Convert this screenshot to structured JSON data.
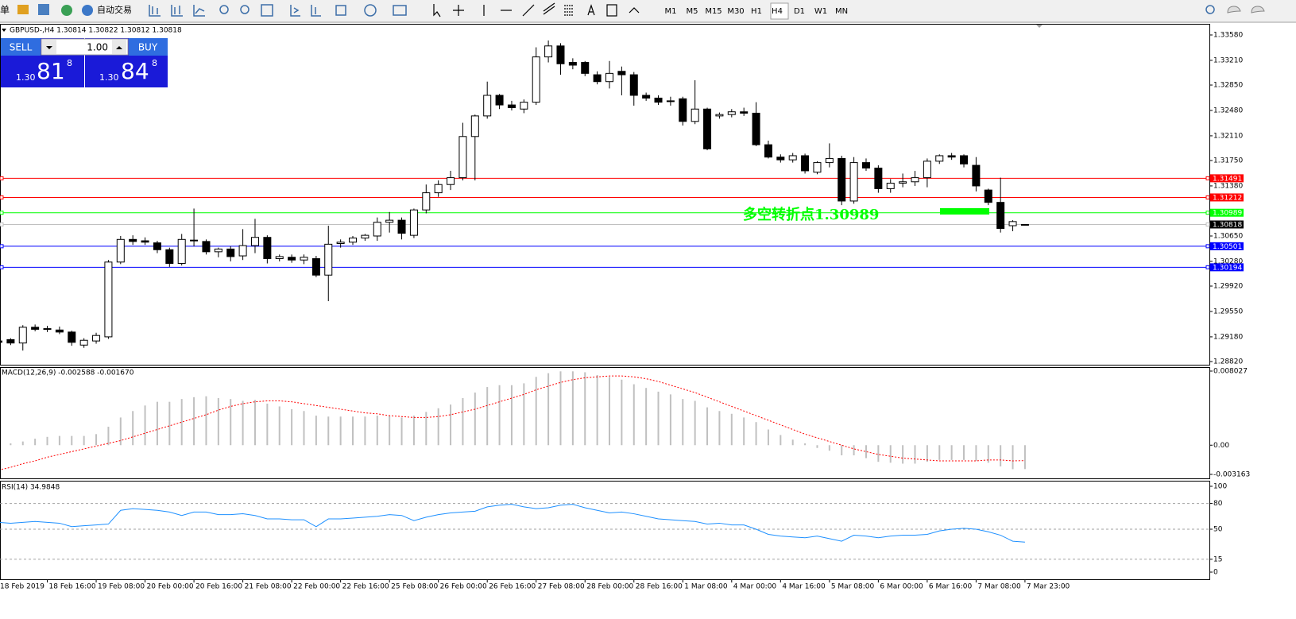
{
  "toolbar": {
    "menu": "单",
    "autotrade": "自动交易",
    "timeframes": [
      "M1",
      "M5",
      "M15",
      "M30",
      "H1",
      "H4",
      "D1",
      "W1",
      "MN"
    ],
    "selected": 5
  },
  "trade_panel": {
    "sell": "SELL",
    "buy": "BUY",
    "lots": "1.00",
    "bid": {
      "big": "1.30",
      "pips": "81",
      "point": "8"
    },
    "ask": {
      "big": "1.30",
      "pips": "84",
      "point": "8"
    }
  },
  "chart_data": [
    {
      "type": "candlestick",
      "title": "GBPUSD-,H4 1.30814 1.30822 1.30812 1.30818",
      "categories": [
        "18 Feb 2019",
        null,
        null,
        null,
        "18 Feb 16:00",
        null,
        null,
        null,
        "19 Feb 08:00",
        null,
        null,
        null,
        "20 Feb 00:00",
        null,
        null,
        null,
        "20 Feb 16:00",
        null,
        null,
        null,
        "21 Feb 08:00",
        null,
        null,
        null,
        "22 Feb 00:00",
        null,
        null,
        null,
        "22 Feb 16:00",
        null,
        null,
        null,
        "25 Feb 08:00",
        null,
        null,
        null,
        "26 Feb 00:00",
        null,
        null,
        null,
        "26 Feb 16:00",
        null,
        null,
        null,
        "27 Feb 08:00",
        null,
        null,
        null,
        "28 Feb 00:00",
        null,
        null,
        null,
        "28 Feb 16:00",
        null,
        null,
        null,
        "1 Mar 08:00",
        null,
        null,
        null,
        "4 Mar 00:00",
        null,
        null,
        null,
        "4 Mar 16:00",
        null,
        null,
        null,
        "5 Mar 08:00",
        null,
        null,
        null,
        "6 Mar 00:00",
        null,
        null,
        null,
        "6 Mar 16:00",
        null,
        null,
        null,
        "7 Mar 08:00",
        null,
        null,
        null,
        "7 Mar 23:00"
      ],
      "open": [
        1.2912,
        1.2914,
        1.2909,
        1.2932,
        1.293,
        1.2928,
        1.2925,
        1.2906,
        1.2912,
        1.2918,
        1.3027,
        1.306,
        1.3058,
        1.3055,
        1.3045,
        1.3025,
        1.3059,
        1.3057,
        1.3042,
        1.3046,
        1.3036,
        1.3051,
        1.3063,
        1.3032,
        1.3034,
        1.303,
        1.3032,
        1.3008,
        1.3054,
        1.3056,
        1.3062,
        1.3065,
        1.3085,
        1.3088,
        1.3066,
        1.3103,
        1.3128,
        1.314,
        1.315,
        1.321,
        1.324,
        1.327,
        1.3256,
        1.325,
        1.326,
        1.3326,
        1.3342,
        1.3318,
        1.3318,
        1.33,
        1.329,
        1.3305,
        1.33,
        1.327,
        1.3266,
        1.3262,
        1.3265,
        1.3232,
        1.325,
        1.324,
        1.3242,
        1.3246,
        1.3244,
        1.3198,
        1.318,
        1.3176,
        1.3182,
        1.3158,
        1.3172,
        1.3178,
        1.3116,
        1.3172,
        1.3164,
        1.3134,
        1.3142,
        1.3144,
        1.315,
        1.3174,
        1.3182,
        1.3182,
        1.3168,
        1.3132,
        1.3114,
        1.308,
        1.30814
      ],
      "high": [
        1.2915,
        1.2916,
        1.2935,
        1.2936,
        1.2934,
        1.2933,
        1.2927,
        1.2916,
        1.2924,
        1.303,
        1.3065,
        1.3066,
        1.3063,
        1.3058,
        1.3048,
        1.3068,
        1.3105,
        1.306,
        1.3048,
        1.305,
        1.3075,
        1.309,
        1.3066,
        1.3038,
        1.3038,
        1.3038,
        1.3036,
        1.308,
        1.306,
        1.3065,
        1.3068,
        1.3092,
        1.31,
        1.3092,
        1.3105,
        1.314,
        1.3146,
        1.316,
        1.323,
        1.3242,
        1.329,
        1.3272,
        1.3262,
        1.3264,
        1.334,
        1.335,
        1.3346,
        1.3324,
        1.332,
        1.3305,
        1.332,
        1.3312,
        1.3304,
        1.3274,
        1.327,
        1.3268,
        1.3268,
        1.3292,
        1.3252,
        1.3245,
        1.325,
        1.3252,
        1.326,
        1.3204,
        1.3184,
        1.3186,
        1.3185,
        1.3174,
        1.32,
        1.3182,
        1.318,
        1.3178,
        1.3168,
        1.3148,
        1.3156,
        1.316,
        1.3178,
        1.3184,
        1.3186,
        1.3184,
        1.318,
        1.3134,
        1.315,
        1.3088,
        1.30822
      ],
      "low": [
        1.2905,
        1.2906,
        1.2898,
        1.2926,
        1.2925,
        1.2922,
        1.2905,
        1.2902,
        1.2908,
        1.2915,
        1.3024,
        1.3052,
        1.3052,
        1.304,
        1.302,
        1.3022,
        1.305,
        1.3038,
        1.3034,
        1.3028,
        1.303,
        1.304,
        1.3025,
        1.3028,
        1.3026,
        1.3024,
        1.3005,
        1.297,
        1.3048,
        1.3052,
        1.3058,
        1.3058,
        1.307,
        1.306,
        1.3062,
        1.3098,
        1.3122,
        1.3132,
        1.3146,
        1.3146,
        1.3236,
        1.325,
        1.3248,
        1.3244,
        1.3256,
        1.3318,
        1.33,
        1.3308,
        1.3298,
        1.3286,
        1.328,
        1.327,
        1.3255,
        1.3262,
        1.3256,
        1.3255,
        1.3226,
        1.3228,
        1.319,
        1.3236,
        1.3238,
        1.324,
        1.3196,
        1.3178,
        1.3172,
        1.3172,
        1.3156,
        1.3155,
        1.3165,
        1.311,
        1.3112,
        1.316,
        1.3128,
        1.3128,
        1.3136,
        1.3138,
        1.3136,
        1.317,
        1.3176,
        1.3165,
        1.313,
        1.311,
        1.307,
        1.3072,
        1.30812
      ],
      "close": [
        1.291,
        1.2909,
        1.2932,
        1.2929,
        1.293,
        1.2925,
        1.291,
        1.2913,
        1.292,
        1.3027,
        1.306,
        1.3057,
        1.3056,
        1.3045,
        1.3025,
        1.306,
        1.3058,
        1.3042,
        1.3046,
        1.3035,
        1.3051,
        1.3063,
        1.3032,
        1.3035,
        1.303,
        1.3034,
        1.3008,
        1.3053,
        1.3056,
        1.3062,
        1.3066,
        1.3085,
        1.3088,
        1.3069,
        1.3103,
        1.3128,
        1.314,
        1.315,
        1.321,
        1.324,
        1.327,
        1.3256,
        1.3252,
        1.326,
        1.3326,
        1.3342,
        1.3316,
        1.3314,
        1.3302,
        1.329,
        1.3302,
        1.33,
        1.327,
        1.3266,
        1.326,
        1.3262,
        1.3232,
        1.325,
        1.3192,
        1.3242,
        1.3246,
        1.3244,
        1.3198,
        1.318,
        1.3176,
        1.3182,
        1.316,
        1.3172,
        1.3178,
        1.3116,
        1.3172,
        1.3164,
        1.3134,
        1.3142,
        1.3144,
        1.315,
        1.3174,
        1.3182,
        1.318,
        1.317,
        1.3138,
        1.3114,
        1.3076,
        1.3086,
        1.30818
      ],
      "up_color": "#ffffff",
      "down_color": "#000000",
      "ylim": [
        1.2877,
        1.3374
      ],
      "yticks": [
        {
          "value": 1.3358,
          "label": "1.33580"
        },
        {
          "value": 1.3321,
          "label": "1.33210"
        },
        {
          "value": 1.3285,
          "label": "1.32850"
        },
        {
          "value": 1.3248,
          "label": "1.32480"
        },
        {
          "value": 1.3211,
          "label": "1.32110"
        },
        {
          "value": 1.3175,
          "label": "1.31750"
        },
        {
          "value": 1.3138,
          "label": "1.31380"
        },
        {
          "value": 1.3065,
          "label": "1.30650"
        },
        {
          "value": 1.3028,
          "label": "1.30280"
        },
        {
          "value": 1.2992,
          "label": "1.29920"
        },
        {
          "value": 1.2955,
          "label": "1.29550"
        },
        {
          "value": 1.2918,
          "label": "1.29180"
        },
        {
          "value": 1.2882,
          "label": "1.28820"
        }
      ],
      "levels": [
        {
          "value": 1.31491,
          "color": "#ff0000",
          "label_color": "#ff0000"
        },
        {
          "value": 1.31212,
          "color": "#ff0000",
          "label_color": "#ff0000"
        },
        {
          "value": 1.30989,
          "color": "#00ff00",
          "label_color": "#00ff00"
        },
        {
          "value": 1.30818,
          "color": "#c0c0c0",
          "label_color": "#000000"
        },
        {
          "value": 1.30501,
          "color": "#0000ff",
          "label_color": "#0000ff"
        },
        {
          "value": 1.30194,
          "color": "#0000ff",
          "label_color": "#0000ff"
        }
      ],
      "annotations": [
        {
          "text": "多空转折点1.30989",
          "color": "#00ff00"
        }
      ]
    },
    {
      "type": "macd",
      "title": "MACD(12,26,9) -0.002588 -0.001670",
      "color": "#c0c0c0",
      "signal_color": "#ff0000",
      "values": [
        0.0001,
        0.0002,
        0.0004,
        0.0007,
        0.0009,
        0.001,
        0.001,
        0.001,
        0.0012,
        0.002,
        0.003,
        0.0037,
        0.0043,
        0.0047,
        0.0047,
        0.005,
        0.0052,
        0.0053,
        0.0051,
        0.005,
        0.0048,
        0.0049,
        0.0045,
        0.0042,
        0.0039,
        0.0037,
        0.0032,
        0.0031,
        0.0031,
        0.0031,
        0.0031,
        0.0032,
        0.0032,
        0.003,
        0.0032,
        0.0036,
        0.004,
        0.0044,
        0.0051,
        0.0057,
        0.0063,
        0.0065,
        0.0065,
        0.0067,
        0.0074,
        0.0078,
        0.008,
        0.008,
        0.0079,
        0.0076,
        0.0074,
        0.0071,
        0.0066,
        0.0062,
        0.0058,
        0.0055,
        0.005,
        0.0048,
        0.0041,
        0.0037,
        0.0034,
        0.003,
        0.0025,
        0.0017,
        0.0011,
        0.0006,
        0.0002,
        -0.0003,
        -0.0006,
        -0.0011,
        -0.0011,
        -0.0014,
        -0.0018,
        -0.0019,
        -0.002,
        -0.002,
        -0.0018,
        -0.0016,
        -0.0016,
        -0.0016,
        -0.0017,
        -0.0019,
        -0.0023,
        -0.0026,
        -0.002588
      ],
      "signal": [
        -0.0027,
        -0.0024,
        -0.002,
        -0.0017,
        -0.0013,
        -0.001,
        -0.0007,
        -0.0004,
        -0.0001,
        0.0002,
        0.0005,
        0.0009,
        0.0013,
        0.0017,
        0.0021,
        0.0025,
        0.0029,
        0.0033,
        0.0038,
        0.0042,
        0.0045,
        0.0047,
        0.0048,
        0.0048,
        0.0047,
        0.0045,
        0.0043,
        0.0041,
        0.0039,
        0.0037,
        0.0035,
        0.0034,
        0.0032,
        0.0031,
        0.003,
        0.003,
        0.0031,
        0.0033,
        0.0036,
        0.0039,
        0.0043,
        0.0047,
        0.0051,
        0.0055,
        0.006,
        0.0064,
        0.0068,
        0.0071,
        0.0073,
        0.0074,
        0.0075,
        0.0075,
        0.0074,
        0.0072,
        0.0069,
        0.0065,
        0.0061,
        0.0057,
        0.0052,
        0.0047,
        0.0042,
        0.0037,
        0.0032,
        0.0027,
        0.0022,
        0.0017,
        0.0012,
        0.0008,
        0.0004,
        0.0,
        -0.0004,
        -0.0007,
        -0.001,
        -0.0012,
        -0.0014,
        -0.0015,
        -0.0016,
        -0.0017,
        -0.0017,
        -0.0017,
        -0.0017,
        -0.0016,
        -0.0016,
        -0.0017,
        -0.00167
      ],
      "ylim": [
        -0.003163,
        0.008027
      ],
      "yticks": [
        0.008027,
        {
          "value": 0,
          "label": "0.00"
        },
        -0.003163
      ]
    },
    {
      "type": "line",
      "title": "RSI(14) 34.9848",
      "color": "#1e90ff",
      "values": [
        58,
        57,
        58,
        59,
        58,
        57,
        53,
        54,
        55,
        56,
        72,
        74,
        73,
        72,
        70,
        66,
        70,
        70,
        67,
        67,
        68,
        66,
        62,
        62,
        61,
        61,
        53,
        62,
        62,
        63,
        64,
        65,
        67,
        66,
        60,
        64,
        67,
        69,
        70,
        71,
        76,
        78,
        79,
        76,
        74,
        75,
        78,
        79,
        75,
        72,
        69,
        70,
        68,
        65,
        62,
        61,
        60,
        59,
        56,
        57,
        55,
        55,
        50,
        44,
        42,
        41,
        40,
        42,
        39,
        36,
        43,
        42,
        40,
        42,
        43,
        43,
        44,
        48,
        50,
        51,
        50,
        47,
        43,
        36,
        34.9848
      ],
      "ylim": [
        0,
        100
      ],
      "yticks": [
        100,
        80,
        50,
        15,
        0
      ],
      "grid": "dashed"
    }
  ]
}
